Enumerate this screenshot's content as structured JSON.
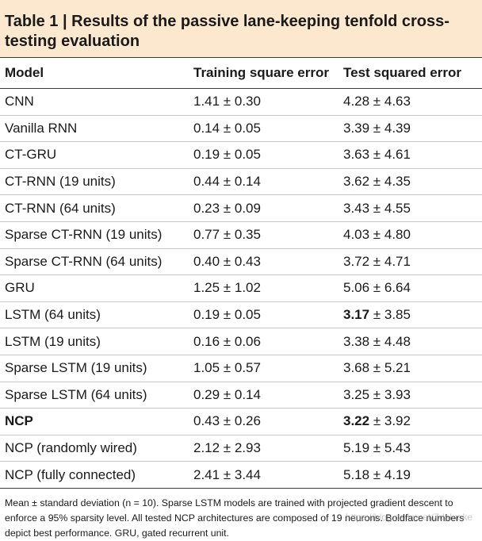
{
  "caption": "Table 1 | Results of the passive lane-keeping tenfold cross-testing evaluation",
  "columns": [
    "Model",
    "Training square error",
    "Test squared error"
  ],
  "rows": [
    {
      "model": "CNN",
      "train": "1.41 ± 0.30",
      "test_best": "",
      "test": "4.28 ± 4.63",
      "bold_model": false
    },
    {
      "model": "Vanilla RNN",
      "train": "0.14 ± 0.05",
      "test_best": "",
      "test": "3.39 ± 4.39",
      "bold_model": false
    },
    {
      "model": "CT-GRU",
      "train": "0.19 ± 0.05",
      "test_best": "",
      "test": "3.63 ± 4.61",
      "bold_model": false
    },
    {
      "model": "CT-RNN (19 units)",
      "train": "0.44 ± 0.14",
      "test_best": "",
      "test": "3.62 ± 4.35",
      "bold_model": false
    },
    {
      "model": "CT-RNN (64 units)",
      "train": "0.23 ± 0.09",
      "test_best": "",
      "test": "3.43 ± 4.55",
      "bold_model": false
    },
    {
      "model": "Sparse CT-RNN (19 units)",
      "train": "0.77 ± 0.35",
      "test_best": "",
      "test": "4.03 ± 4.80",
      "bold_model": false
    },
    {
      "model": "Sparse CT-RNN (64 units)",
      "train": "0.40 ± 0.43",
      "test_best": "",
      "test": "3.72 ± 4.71",
      "bold_model": false
    },
    {
      "model": "GRU",
      "train": "1.25 ± 1.02",
      "test_best": "",
      "test": "5.06 ± 6.64",
      "bold_model": false
    },
    {
      "model": "LSTM (64 units)",
      "train": "0.19 ± 0.05",
      "test_best": "3.17",
      "test": " ± 3.85",
      "bold_model": false
    },
    {
      "model": "LSTM (19 units)",
      "train": "0.16 ± 0.06",
      "test_best": "",
      "test": "3.38 ± 4.48",
      "bold_model": false
    },
    {
      "model": "Sparse LSTM (19 units)",
      "train": "1.05 ± 0.57",
      "test_best": "",
      "test": "3.68 ± 5.21",
      "bold_model": false
    },
    {
      "model": "Sparse LSTM (64 units)",
      "train": "0.29 ± 0.14",
      "test_best": "",
      "test": "3.25 ± 3.93",
      "bold_model": false
    },
    {
      "model": "NCP",
      "train": "0.43 ± 0.26",
      "test_best": "3.22",
      "test": " ± 3.92",
      "bold_model": true
    },
    {
      "model": "NCP (randomly wired)",
      "train": "2.12 ± 2.93",
      "test_best": "",
      "test": "5.19 ± 5.43",
      "bold_model": false
    },
    {
      "model": "NCP (fully connected)",
      "train": "2.41 ± 3.44",
      "test_best": "",
      "test": "5.18 ± 4.19",
      "bold_model": false
    }
  ],
  "footnote": "Mean ± standard deviation (n = 10). Sparse LSTM models are trained with projected gradient descent to enforce a 95% sparsity level. All tested NCP architectures are composed of 19 neurons. Boldface numbers depict best performance. GRU, gated recurrent unit.",
  "watermark": "https://blog.csdn.net/Zdaluoke"
}
